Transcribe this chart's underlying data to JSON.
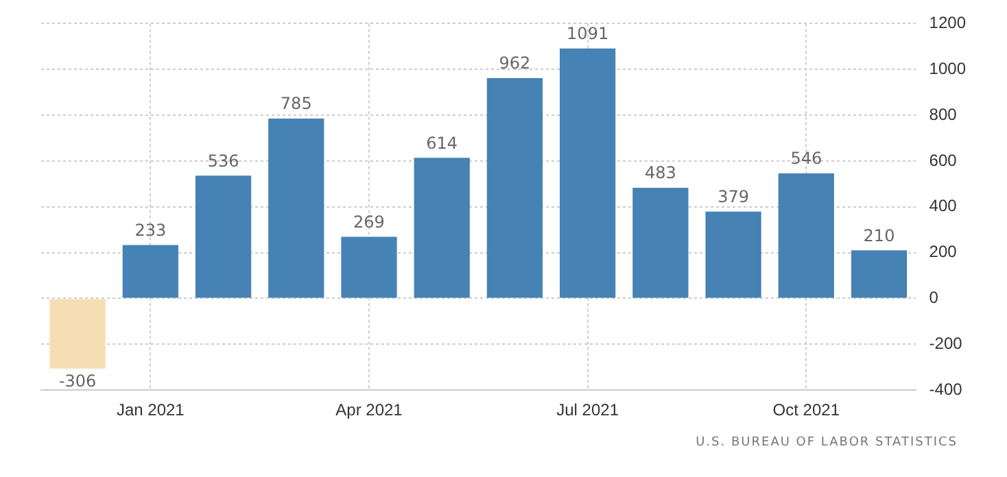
{
  "chart_data": {
    "type": "bar",
    "categories": [
      null,
      "Jan 2021",
      null,
      null,
      "Apr 2021",
      null,
      null,
      "Jul 2021",
      null,
      null,
      "Oct 2021",
      null
    ],
    "values": [
      -306,
      233,
      536,
      785,
      269,
      614,
      962,
      1091,
      483,
      379,
      546,
      210
    ],
    "colors": [
      "#f5deb3",
      "#4682b4",
      "#4682b4",
      "#4682b4",
      "#4682b4",
      "#4682b4",
      "#4682b4",
      "#4682b4",
      "#4682b4",
      "#4682b4",
      "#4682b4",
      "#4682b4"
    ],
    "ylim": [
      -400,
      1200
    ],
    "yticks": [
      -400,
      -200,
      0,
      200,
      400,
      600,
      800,
      1000,
      1200
    ],
    "grid": true,
    "legend": false,
    "data_labels": true,
    "annotations": [
      "U.S. BUREAU OF LABOR STATISTICS"
    ]
  }
}
